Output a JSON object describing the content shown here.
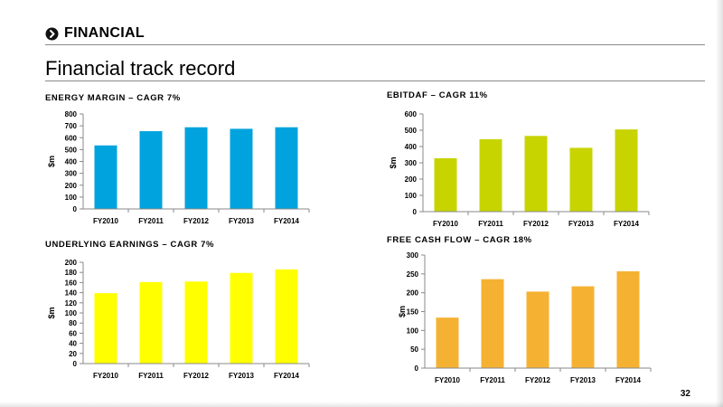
{
  "header": {
    "section": "FINANCIAL",
    "title": "Financial track record",
    "page_number": "32"
  },
  "colors": {
    "energy_margin": "#00a3dd",
    "ebitdaf": "#c7d400",
    "underlying_earnings": "#ffff00",
    "free_cash_flow": "#f5b232",
    "section_icon": "#111111",
    "rule": "#8a8a8a"
  },
  "chart_data": [
    {
      "type": "bar",
      "title": "ENERGY MARGIN – CAGR 7%",
      "ylabel": "$m",
      "xlabel": "",
      "categories": [
        "FY2010",
        "FY2011",
        "FY2012",
        "FY2013",
        "FY2014"
      ],
      "values": [
        535,
        655,
        688,
        675,
        688
      ],
      "ylim": [
        0,
        800
      ],
      "yticks": [
        0,
        100,
        200,
        300,
        400,
        500,
        600,
        700,
        800
      ],
      "grid": false,
      "legend": "none"
    },
    {
      "type": "bar",
      "title": "EBITDAF – CAGR 11%",
      "ylabel": "$m",
      "xlabel": "",
      "categories": [
        "FY2010",
        "FY2011",
        "FY2012",
        "FY2013",
        "FY2014"
      ],
      "values": [
        328,
        445,
        465,
        392,
        505
      ],
      "ylim": [
        0,
        600
      ],
      "yticks": [
        0,
        100,
        200,
        300,
        400,
        500,
        600
      ],
      "grid": false,
      "legend": "none"
    },
    {
      "type": "bar",
      "title": "UNDERLYING EARNINGS – CAGR 7%",
      "ylabel": "$m",
      "xlabel": "",
      "categories": [
        "FY2010",
        "FY2011",
        "FY2012",
        "FY2013",
        "FY2014"
      ],
      "values": [
        139,
        161,
        162,
        179,
        186
      ],
      "ylim": [
        0,
        200
      ],
      "yticks": [
        0,
        20,
        40,
        60,
        80,
        100,
        120,
        140,
        160,
        180,
        200
      ],
      "grid": false,
      "legend": "none"
    },
    {
      "type": "bar",
      "title": "FREE CASH FLOW – CAGR 18%",
      "ylabel": "$m",
      "xlabel": "",
      "categories": [
        "FY2010",
        "FY2011",
        "FY2012",
        "FY2013",
        "FY2014"
      ],
      "values": [
        134,
        236,
        203,
        217,
        257
      ],
      "ylim": [
        0,
        300
      ],
      "yticks": [
        0,
        50,
        100,
        150,
        200,
        250,
        300
      ],
      "grid": false,
      "legend": "none"
    }
  ]
}
